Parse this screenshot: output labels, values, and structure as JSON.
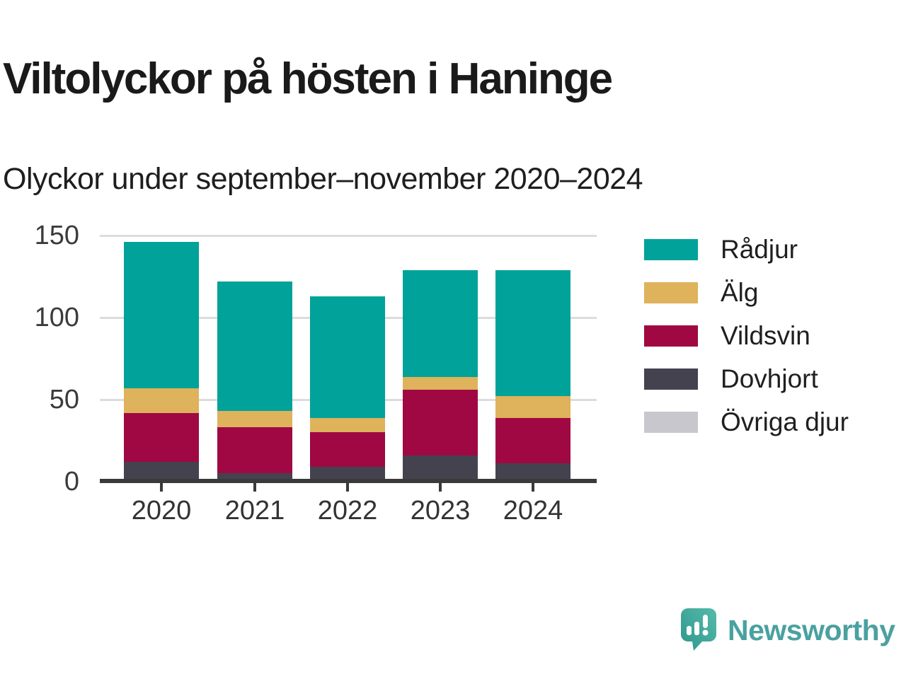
{
  "chart_data": {
    "type": "bar",
    "stacked": true,
    "title": "Viltolyckor på hösten i Haninge",
    "subtitle": "Olyckor under september–november 2020–2024",
    "categories": [
      "2020",
      "2021",
      "2022",
      "2023",
      "2024"
    ],
    "series": [
      {
        "name": "Rådjur",
        "color": "#00A29A",
        "values": [
          89,
          79,
          74,
          65,
          77
        ]
      },
      {
        "name": "Älg",
        "color": "#DFB25C",
        "values": [
          15,
          10,
          9,
          8,
          13
        ]
      },
      {
        "name": "Vildsvin",
        "color": "#A00843",
        "values": [
          30,
          28,
          21,
          40,
          28
        ]
      },
      {
        "name": "Dovhjort",
        "color": "#454250",
        "values": [
          12,
          5,
          9,
          16,
          11
        ]
      },
      {
        "name": "Övriga djur",
        "color": "#C7C7CD",
        "values": [
          0,
          0,
          0,
          0,
          0
        ]
      }
    ],
    "totals": [
      146,
      122,
      113,
      129,
      129
    ],
    "ylim": [
      0,
      150
    ],
    "yticks": [
      0,
      50,
      100,
      150
    ],
    "grid": "horizontal",
    "legend_position": "right",
    "colors": {
      "axis": "#3a3a3a",
      "gridline": "#dcdcdc",
      "tick_label": "#3b3b3b",
      "title_text": "#1a1a1a"
    }
  },
  "logo": {
    "text": "Newsworthy",
    "accent": "#4AA1A0"
  }
}
